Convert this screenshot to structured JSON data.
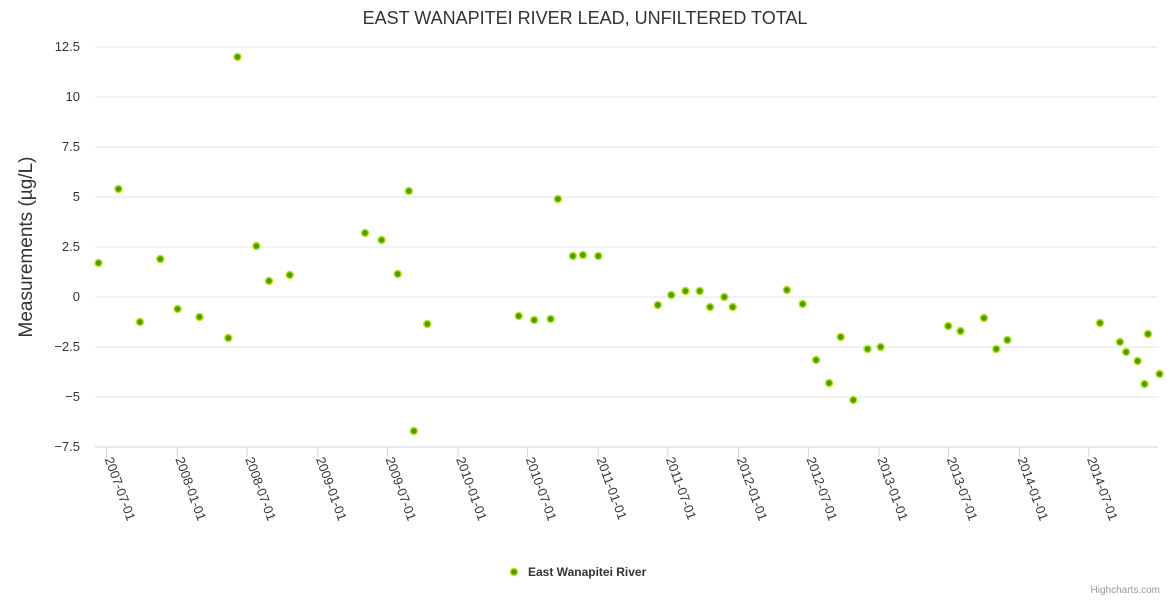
{
  "chart_data": {
    "type": "scatter",
    "title": "EAST WANAPITEI RIVER LEAD, UNFILTERED TOTAL",
    "ylabel": "Measurements (µg/L)",
    "xlabel": "",
    "ylim": [
      -7.5,
      12.5
    ],
    "yticks": [
      "12.5",
      "10",
      "7.5",
      "5",
      "2.5",
      "0",
      "−2.5",
      "−5",
      "−7.5"
    ],
    "ytick_values": [
      12.5,
      10,
      7.5,
      5,
      2.5,
      0,
      -2.5,
      -5,
      -7.5
    ],
    "xticks": [
      "2007-07-01",
      "2008-01-01",
      "2008-07-01",
      "2009-01-01",
      "2009-07-01",
      "2010-01-01",
      "2010-07-01",
      "2011-01-01",
      "2011-07-01",
      "2012-01-01",
      "2012-07-01",
      "2013-01-01",
      "2013-07-01",
      "2014-01-01",
      "2014-07-01"
    ],
    "xlim": [
      "2007-06-01",
      "2014-12-28"
    ],
    "grid": true,
    "legend_position": "bottom-center",
    "series": [
      {
        "name": "East Wanapitei River",
        "color": "#4f9a00",
        "points": [
          {
            "x": "2007-06-10",
            "y": 1.7
          },
          {
            "x": "2007-08-01",
            "y": 5.4
          },
          {
            "x": "2007-09-26",
            "y": -1.25
          },
          {
            "x": "2007-11-18",
            "y": 1.9
          },
          {
            "x": "2008-01-02",
            "y": -0.6
          },
          {
            "x": "2008-02-28",
            "y": -1.0
          },
          {
            "x": "2008-05-13",
            "y": -2.05
          },
          {
            "x": "2008-06-06",
            "y": 12.0
          },
          {
            "x": "2008-07-25",
            "y": 2.55
          },
          {
            "x": "2008-08-27",
            "y": 0.8
          },
          {
            "x": "2008-10-20",
            "y": 1.1
          },
          {
            "x": "2009-05-04",
            "y": 3.2
          },
          {
            "x": "2009-06-16",
            "y": 2.85
          },
          {
            "x": "2009-07-28",
            "y": 1.15
          },
          {
            "x": "2009-08-26",
            "y": 5.3
          },
          {
            "x": "2009-09-08",
            "y": -6.7
          },
          {
            "x": "2009-10-13",
            "y": -1.35
          },
          {
            "x": "2010-06-08",
            "y": -0.95
          },
          {
            "x": "2010-07-18",
            "y": -1.15
          },
          {
            "x": "2010-08-30",
            "y": -1.1
          },
          {
            "x": "2010-09-18",
            "y": 4.9
          },
          {
            "x": "2010-10-27",
            "y": 2.05
          },
          {
            "x": "2010-11-22",
            "y": 2.1
          },
          {
            "x": "2011-01-01",
            "y": 2.05
          },
          {
            "x": "2011-06-05",
            "y": -0.4
          },
          {
            "x": "2011-07-10",
            "y": 0.1
          },
          {
            "x": "2011-08-16",
            "y": 0.3
          },
          {
            "x": "2011-09-22",
            "y": 0.3
          },
          {
            "x": "2011-10-19",
            "y": -0.5
          },
          {
            "x": "2011-11-25",
            "y": 0.0
          },
          {
            "x": "2011-12-17",
            "y": -0.5
          },
          {
            "x": "2012-05-06",
            "y": 0.35
          },
          {
            "x": "2012-06-16",
            "y": -0.35
          },
          {
            "x": "2012-07-21",
            "y": -3.15
          },
          {
            "x": "2012-08-24",
            "y": -4.3
          },
          {
            "x": "2012-09-23",
            "y": -2.0
          },
          {
            "x": "2012-10-26",
            "y": -5.15
          },
          {
            "x": "2012-12-02",
            "y": -2.6
          },
          {
            "x": "2013-01-05",
            "y": -2.5
          },
          {
            "x": "2013-06-30",
            "y": -1.45
          },
          {
            "x": "2013-08-01",
            "y": -1.7
          },
          {
            "x": "2013-10-01",
            "y": -1.05
          },
          {
            "x": "2013-11-02",
            "y": -2.6
          },
          {
            "x": "2013-12-01",
            "y": -2.15
          },
          {
            "x": "2014-07-30",
            "y": -1.3
          },
          {
            "x": "2014-09-20",
            "y": -2.25
          },
          {
            "x": "2014-10-06",
            "y": -2.75
          },
          {
            "x": "2014-11-05",
            "y": -3.2
          },
          {
            "x": "2014-12-02",
            "y": -1.85
          },
          {
            "x": "2014-11-23",
            "y": -4.35
          },
          {
            "x": "2015-01-01",
            "y": -3.85
          }
        ]
      }
    ]
  },
  "credits": "Highcharts.com"
}
